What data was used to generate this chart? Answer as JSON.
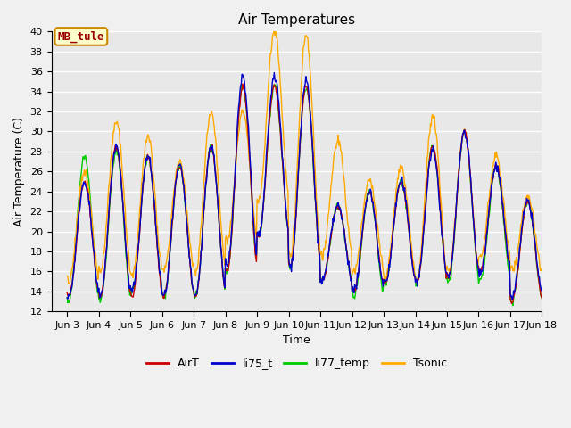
{
  "title": "Air Temperatures",
  "xlabel": "Time",
  "ylabel": "Air Temperature (C)",
  "ylim": [
    12,
    40
  ],
  "yticks": [
    12,
    14,
    16,
    18,
    20,
    22,
    24,
    26,
    28,
    30,
    32,
    34,
    36,
    38,
    40
  ],
  "series_colors": {
    "AirT": "#cc0000",
    "li75_t": "#0000cc",
    "li77_temp": "#00cc00",
    "Tsonic": "#ffaa00"
  },
  "annotation_text": "MB_tule",
  "annotation_bg": "#ffffcc",
  "annotation_border": "#cc8800",
  "annotation_text_color": "#990000",
  "plot_bg": "#e8e8e8",
  "fig_bg": "#f0f0f0",
  "grid_color": "#ffffff",
  "title_fontsize": 11,
  "axis_fontsize": 9,
  "tick_fontsize": 8,
  "legend_fontsize": 9,
  "xlim": [
    2.5,
    18.0
  ]
}
